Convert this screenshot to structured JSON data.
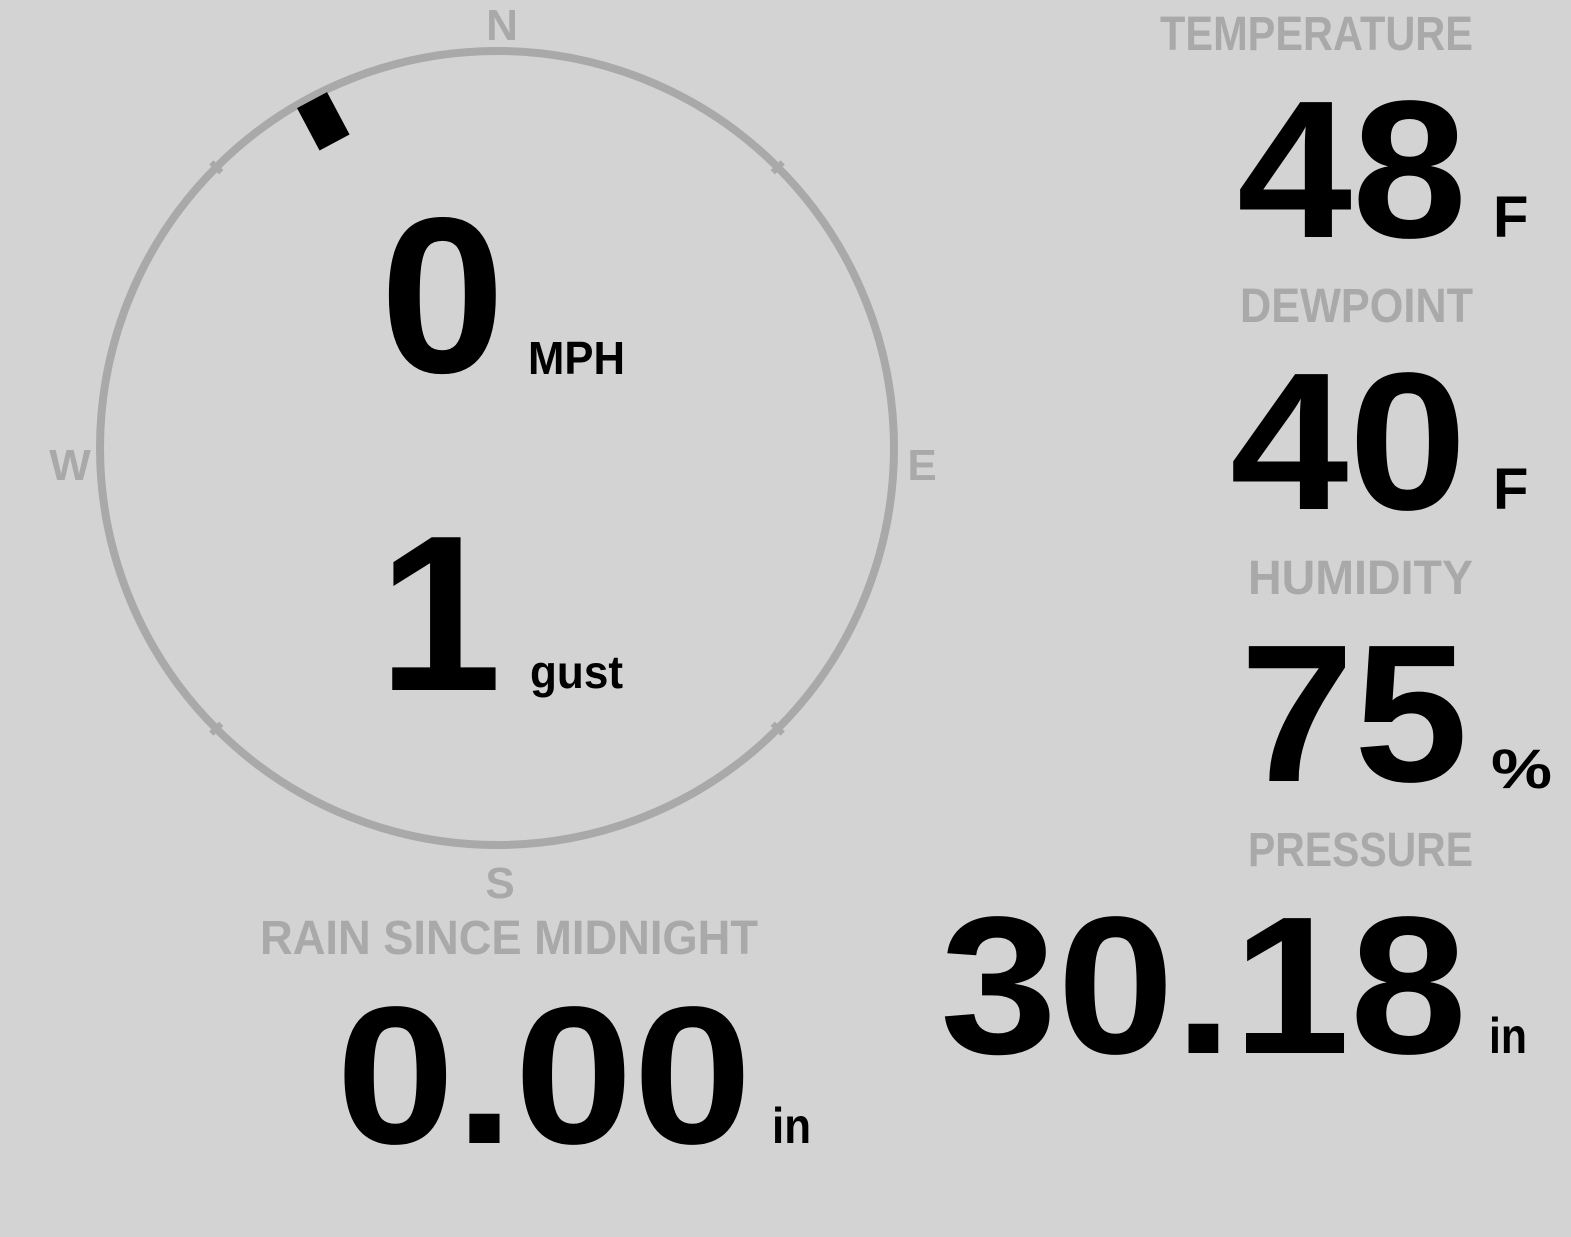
{
  "colors": {
    "background": "#d3d3d3",
    "label": "#a9a9a9",
    "value": "#000000",
    "ring": "#a9a9a9"
  },
  "compass": {
    "n": "N",
    "e": "E",
    "s": "S",
    "w": "W"
  },
  "wind": {
    "speed": "0",
    "speed_unit": "MPH",
    "gust": "1",
    "gust_unit": "gust",
    "direction_deg": 332
  },
  "temperature": {
    "label": "TEMPERATURE",
    "value": "48",
    "unit": "F"
  },
  "dewpoint": {
    "label": "DEWPOINT",
    "value": "40",
    "unit": "F"
  },
  "humidity": {
    "label": "HUMIDITY",
    "value": "75",
    "unit": "%"
  },
  "pressure": {
    "label": "PRESSURE",
    "value": "30.18",
    "unit": "in"
  },
  "rain": {
    "label": "RAIN SINCE MIDNIGHT",
    "value": "0.00",
    "unit": "in"
  }
}
